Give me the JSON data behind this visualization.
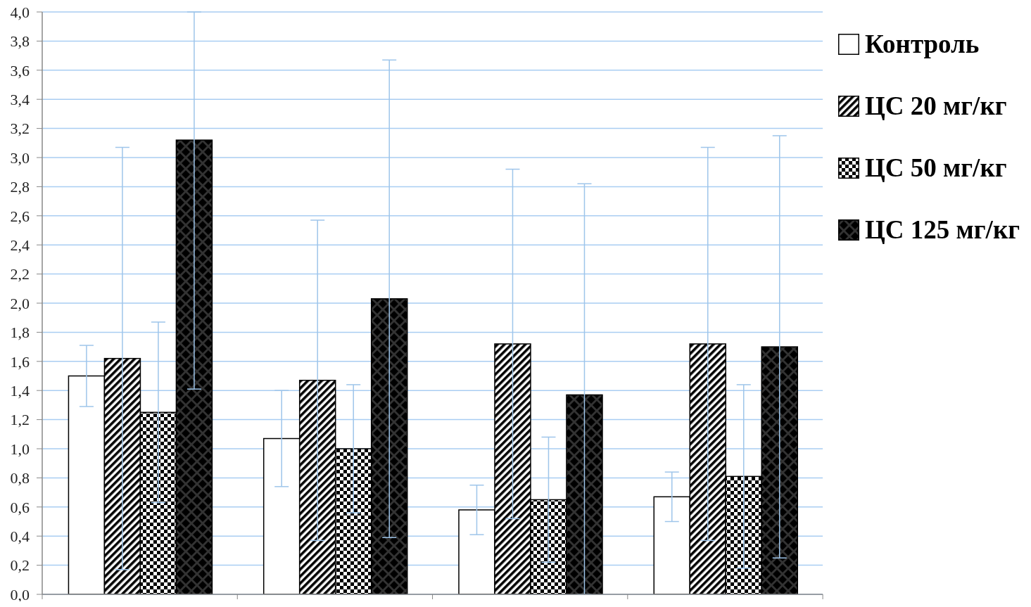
{
  "chart_data": {
    "type": "bar",
    "categories": [
      null,
      null,
      null,
      null
    ],
    "series": [
      {
        "name": "Контроль",
        "color": "#ffffff",
        "values": [
          1.5,
          1.07,
          0.58,
          0.67
        ],
        "errors": [
          0.21,
          0.33,
          0.17,
          0.17
        ]
      },
      {
        "name": "ЦС 20 мг/кг",
        "color": "#000000",
        "values": [
          1.62,
          1.47,
          1.72,
          1.72
        ],
        "errors": [
          1.45,
          1.1,
          1.2,
          1.35
        ]
      },
      {
        "name": "ЦС 50 мг/кг",
        "color": "#000000",
        "values": [
          1.25,
          1.0,
          0.65,
          0.81
        ],
        "errors": [
          0.62,
          0.44,
          0.43,
          0.63
        ]
      },
      {
        "name": "ЦС 125 мг/кг",
        "color": "#000000",
        "values": [
          3.12,
          2.03,
          1.37,
          1.7
        ],
        "errors": [
          [
            1.41,
            4.0
          ],
          1.64,
          [
            0,
            2.82
          ],
          1.45
        ]
      }
    ],
    "ylim": [
      0,
      4.0
    ],
    "yticks": [
      {
        "value": 0,
        "label": "0,0"
      },
      {
        "value": 0.2,
        "label": "0,2"
      },
      {
        "value": 0.4,
        "label": "0,4"
      },
      {
        "value": 0.6,
        "label": "0,6"
      },
      {
        "value": 0.8,
        "label": "0,8"
      },
      {
        "value": 1.0,
        "label": "1,0"
      },
      {
        "value": 1.2,
        "label": "1,2"
      },
      {
        "value": 1.4,
        "label": "1,4"
      },
      {
        "value": 1.6,
        "label": "1,6"
      },
      {
        "value": 1.8,
        "label": "1,8"
      },
      {
        "value": 2.0,
        "label": "2,0"
      },
      {
        "value": 2.2,
        "label": "2,2"
      },
      {
        "value": 2.4,
        "label": "2,4"
      },
      {
        "value": 2.6,
        "label": "2,6"
      },
      {
        "value": 2.8,
        "label": "2,8"
      },
      {
        "value": 3.0,
        "label": "3,0"
      },
      {
        "value": 3.2,
        "label": "3,2"
      },
      {
        "value": 3.4,
        "label": "3,4"
      },
      {
        "value": 3.6,
        "label": "3,6"
      },
      {
        "value": 3.8,
        "label": "3,8"
      },
      {
        "value": 4.0,
        "label": "4,0"
      }
    ],
    "grid": "y",
    "legend": "top right",
    "tick_labels": "y"
  }
}
